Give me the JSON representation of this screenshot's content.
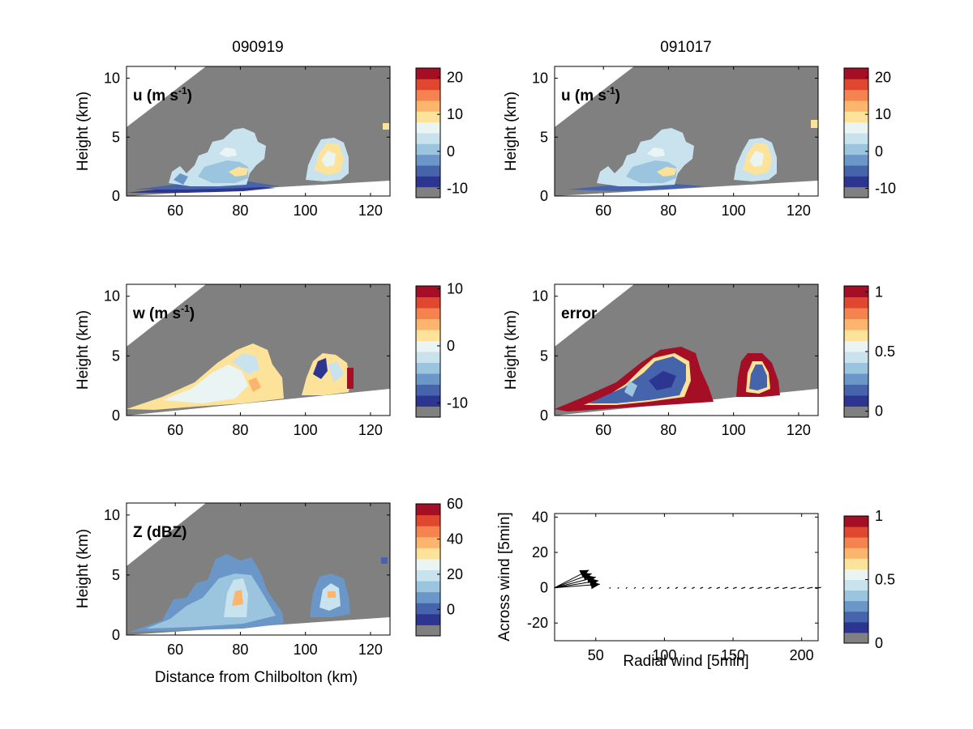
{
  "figure": {
    "column_titles": [
      "090919",
      "091017"
    ],
    "palette": [
      "#808080",
      "#2c3690",
      "#4664ab",
      "#6a97c7",
      "#9bc4de",
      "#c8e2ee",
      "#eaf4f3",
      "#fde39a",
      "#fbb56d",
      "#f5834f",
      "#e0472f",
      "#a50f26"
    ]
  },
  "chart_data": [
    {
      "type": "heatmap",
      "column": 0,
      "row": 0,
      "label": "u (m s",
      "label_superscript": "-1",
      "label_close": ")",
      "xlabel": "",
      "ylabel": "Height (km)",
      "xlim": [
        45,
        126
      ],
      "ylim": [
        0,
        11
      ],
      "xticks": [
        60,
        80,
        100,
        120
      ],
      "yticks": [
        0,
        5,
        10
      ],
      "colorbar": {
        "ticks": [
          20,
          10,
          0,
          -10
        ],
        "range": [
          -12.5,
          22.5
        ]
      },
      "mask": {
        "upper_edge": [
          [
            45,
            6.6
          ],
          [
            82,
            11
          ]
        ],
        "lower_edge": [
          [
            45,
            0.2
          ],
          [
            126,
            1.3
          ]
        ]
      }
    },
    {
      "type": "heatmap",
      "column": 1,
      "row": 0,
      "label": "u (m s",
      "label_superscript": "-1",
      "label_close": ")",
      "xlabel": "",
      "ylabel": "Height (km)",
      "xlim": [
        45,
        126
      ],
      "ylim": [
        0,
        11
      ],
      "xticks": [
        60,
        80,
        100,
        120
      ],
      "yticks": [
        0,
        5,
        10
      ],
      "colorbar": {
        "ticks": [
          20,
          10,
          0,
          -10
        ],
        "range": [
          -12.5,
          22.5
        ]
      },
      "mask": {
        "upper_edge": [
          [
            45,
            6.6
          ],
          [
            82,
            11
          ]
        ],
        "lower_edge": [
          [
            45,
            0.2
          ],
          [
            126,
            1.3
          ]
        ]
      }
    },
    {
      "type": "heatmap",
      "column": 0,
      "row": 1,
      "label": "w (m s",
      "label_superscript": "-1",
      "label_close": ")",
      "xlabel": "",
      "ylabel": "Height (km)",
      "xlim": [
        45,
        126
      ],
      "ylim": [
        0,
        11
      ],
      "xticks": [
        60,
        80,
        100,
        120
      ],
      "yticks": [
        0,
        5,
        10
      ],
      "colorbar": {
        "ticks": [
          10,
          0,
          -10
        ],
        "range": [
          -12.5,
          10.5
        ]
      },
      "mask": {
        "upper_edge": [
          [
            45,
            6.6
          ],
          [
            82,
            11
          ]
        ],
        "lower_edge": [
          [
            45,
            0.5
          ],
          [
            126,
            2.3
          ]
        ]
      }
    },
    {
      "type": "heatmap",
      "column": 1,
      "row": 1,
      "label": "error",
      "label_superscript": "",
      "label_close": "",
      "xlabel": "",
      "ylabel": "Height (km)",
      "xlim": [
        45,
        126
      ],
      "ylim": [
        0,
        11
      ],
      "xticks": [
        60,
        80,
        100,
        120
      ],
      "yticks": [
        0,
        5,
        10
      ],
      "colorbar": {
        "ticks": [
          1,
          0.5,
          0
        ],
        "range": [
          -0.05,
          1.05
        ]
      },
      "mask": {
        "upper_edge": [
          [
            45,
            6.6
          ],
          [
            82,
            11
          ]
        ],
        "lower_edge": [
          [
            45,
            0.5
          ],
          [
            126,
            2.3
          ]
        ]
      }
    },
    {
      "type": "heatmap",
      "column": 0,
      "row": 2,
      "label": "Z (dBZ)",
      "label_superscript": "",
      "label_close": "",
      "xlabel": "Distance from Chilbolton (km)",
      "ylabel": "Height (km)",
      "xlim": [
        45,
        126
      ],
      "ylim": [
        0,
        11
      ],
      "xticks": [
        60,
        80,
        100,
        120
      ],
      "yticks": [
        0,
        5,
        10
      ],
      "colorbar": {
        "ticks": [
          60,
          40,
          20,
          0
        ],
        "range": [
          -15,
          60
        ]
      },
      "mask": {
        "upper_edge": [
          [
            45,
            6.6
          ],
          [
            82,
            11
          ]
        ],
        "lower_edge": [
          [
            45,
            0.2
          ],
          [
            126,
            1.3
          ]
        ]
      }
    },
    {
      "type": "scatter",
      "column": 1,
      "row": 2,
      "label": "",
      "xlabel": "Radial wind [5min]",
      "ylabel": "Across wind [5min]",
      "xlim": [
        20,
        212
      ],
      "ylim": [
        -30,
        42
      ],
      "xticks": [
        50,
        100,
        150,
        200
      ],
      "yticks": [
        40,
        20,
        0,
        -20
      ],
      "colorbar": {
        "ticks": [
          1,
          0.5,
          0
        ],
        "range": [
          0,
          1
        ]
      },
      "quiver": {
        "origin": [
          20,
          0
        ],
        "tips": [
          [
            45,
            10
          ],
          [
            47,
            8
          ],
          [
            50,
            6
          ],
          [
            52,
            4
          ],
          [
            53,
            2
          ]
        ],
        "dots_from": 60,
        "dots_to": 210
      }
    }
  ]
}
